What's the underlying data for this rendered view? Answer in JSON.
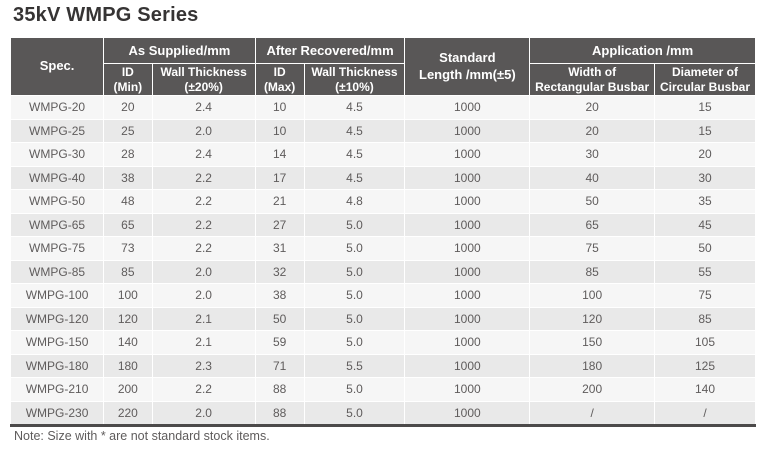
{
  "title": "35kV WMPG Series",
  "note": "Note: Size with * are not standard stock items.",
  "colors": {
    "header_bg": "#595757",
    "header_text": "#ffffff",
    "row_odd": "#f6f6f6",
    "row_even": "#e9e9e9",
    "body_text": "#5f5c5c",
    "border_dark": "#4c4a4a",
    "title_text": "#363434"
  },
  "table": {
    "header": {
      "spec": "Spec.",
      "group_as_supplied": "As Supplied/mm",
      "group_after_recovered": "After Recovered/mm",
      "standard_length_line1": "Standard",
      "standard_length_line2": "Length /mm(±5)",
      "group_application": "Application /mm",
      "sub": {
        "id_min_line1": "ID",
        "id_min_line2": "(Min)",
        "wt20_line1": "Wall Thickness",
        "wt20_line2": "(±20%)",
        "id_max_line1": "ID",
        "id_max_line2": "(Max)",
        "wt10_line1": "Wall Thickness",
        "wt10_line2": "(±10%)",
        "width_rect_line1": "Width of",
        "width_rect_line2": "Rectangular Busbar",
        "dia_circ_line1": "Diameter of",
        "dia_circ_line2": "Circular Busbar"
      }
    },
    "rows": [
      [
        "WMPG-20",
        "20",
        "2.4",
        "10",
        "4.5",
        "1000",
        "20",
        "15"
      ],
      [
        "WMPG-25",
        "25",
        "2.0",
        "10",
        "4.5",
        "1000",
        "20",
        "15"
      ],
      [
        "WMPG-30",
        "28",
        "2.4",
        "14",
        "4.5",
        "1000",
        "30",
        "20"
      ],
      [
        "WMPG-40",
        "38",
        "2.2",
        "17",
        "4.5",
        "1000",
        "40",
        "30"
      ],
      [
        "WMPG-50",
        "48",
        "2.2",
        "21",
        "4.8",
        "1000",
        "50",
        "35"
      ],
      [
        "WMPG-65",
        "65",
        "2.2",
        "27",
        "5.0",
        "1000",
        "65",
        "45"
      ],
      [
        "WMPG-75",
        "73",
        "2.2",
        "31",
        "5.0",
        "1000",
        "75",
        "50"
      ],
      [
        "WMPG-85",
        "85",
        "2.0",
        "32",
        "5.0",
        "1000",
        "85",
        "55"
      ],
      [
        "WMPG-100",
        "100",
        "2.0",
        "38",
        "5.0",
        "1000",
        "100",
        "75"
      ],
      [
        "WMPG-120",
        "120",
        "2.1",
        "50",
        "5.0",
        "1000",
        "120",
        "85"
      ],
      [
        "WMPG-150",
        "140",
        "2.1",
        "59",
        "5.0",
        "1000",
        "150",
        "105"
      ],
      [
        "WMPG-180",
        "180",
        "2.3",
        "71",
        "5.5",
        "1000",
        "180",
        "125"
      ],
      [
        "WMPG-210",
        "200",
        "2.2",
        "88",
        "5.0",
        "1000",
        "200",
        "140"
      ],
      [
        "WMPG-230",
        "220",
        "2.0",
        "88",
        "5.0",
        "1000",
        "/",
        "/"
      ]
    ]
  }
}
